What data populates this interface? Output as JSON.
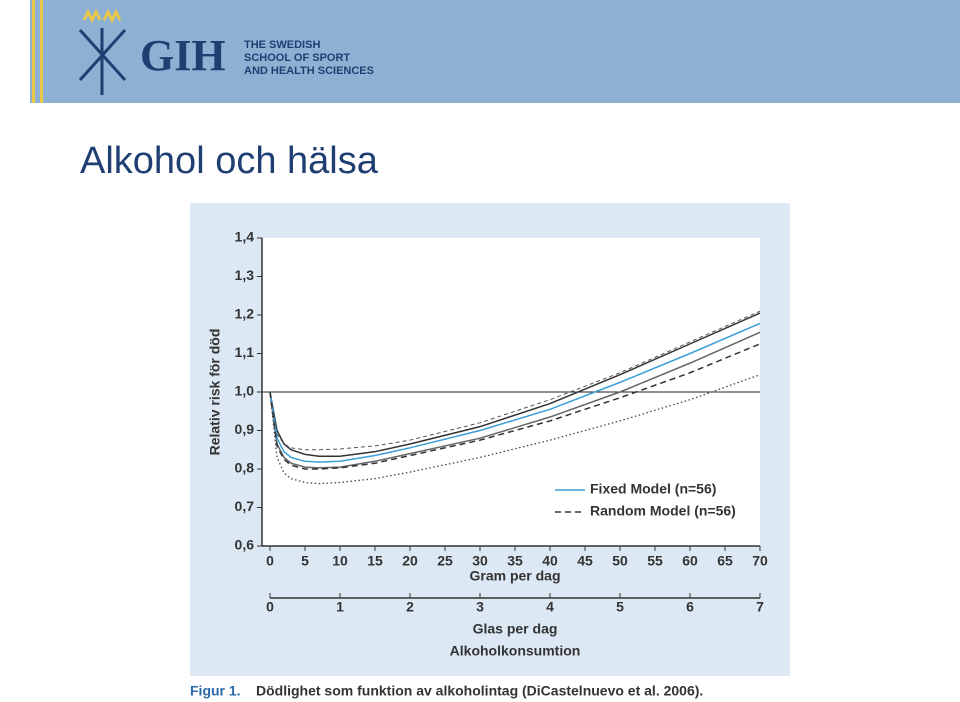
{
  "slide": {
    "logo": {
      "abbr": "GIH",
      "lines": [
        "THE SWEDISH",
        "SCHOOL OF SPORT",
        "AND HEALTH SCIENCES"
      ]
    },
    "title": "Alkohol och hälsa",
    "caption_label": "Figur 1.",
    "caption_text": "Dödlighet som funktion av alkoholintag (DiCastelnuevo et al. 2006)."
  },
  "chart_data": {
    "type": "line",
    "ylabel": "Relativ risk för död",
    "xlabel": "Gram per dag",
    "x2label": "Glas per dag",
    "footer_label": "Alkoholkonsumtion",
    "x": [
      0,
      1,
      2,
      3,
      5,
      7,
      10,
      15,
      20,
      30,
      40,
      50,
      60,
      70
    ],
    "series": [
      {
        "color": "#666666",
        "dash": "solid",
        "values": [
          1.0,
          0.865,
          0.83,
          0.815,
          0.805,
          0.803,
          0.805,
          0.82,
          0.84,
          0.88,
          0.935,
          1.0,
          1.075,
          1.155
        ]
      },
      {
        "color": "#333333",
        "dash": "solid",
        "values": [
          1.0,
          0.9,
          0.865,
          0.85,
          0.838,
          0.833,
          0.833,
          0.845,
          0.865,
          0.91,
          0.97,
          1.045,
          1.125,
          1.205
        ]
      },
      {
        "color": "#444444",
        "dash": "dotted",
        "values": [
          1.0,
          0.83,
          0.79,
          0.775,
          0.765,
          0.762,
          0.765,
          0.775,
          0.792,
          0.83,
          0.875,
          0.925,
          0.98,
          1.045
        ]
      },
      {
        "color": "#555555",
        "dash": "thin-dashed",
        "values": [
          1.0,
          0.89,
          0.865,
          0.855,
          0.85,
          0.85,
          0.852,
          0.86,
          0.875,
          0.92,
          0.98,
          1.05,
          1.13,
          1.21
        ]
      },
      {
        "name": "Fixed Model (n=56)",
        "color": "#3a9fd8",
        "dash": "solid",
        "values": [
          1.0,
          0.88,
          0.845,
          0.83,
          0.82,
          0.818,
          0.82,
          0.835,
          0.855,
          0.9,
          0.955,
          1.025,
          1.1,
          1.178
        ]
      },
      {
        "name": "Random Model (n=56)",
        "color": "#333333",
        "dash": "dashed",
        "values": [
          1.0,
          0.86,
          0.825,
          0.81,
          0.8,
          0.8,
          0.803,
          0.815,
          0.835,
          0.875,
          0.925,
          0.985,
          1.05,
          1.125
        ]
      }
    ],
    "reference_line": 1.0,
    "xlim": [
      0,
      70
    ],
    "xticks": [
      0,
      5,
      10,
      15,
      20,
      25,
      30,
      35,
      40,
      45,
      50,
      55,
      60,
      65,
      70
    ],
    "x2lim": [
      0,
      7
    ],
    "x2ticks": [
      0,
      1,
      2,
      3,
      4,
      5,
      6,
      7
    ],
    "ylim": [
      0.6,
      1.4
    ],
    "yticks": [
      {
        "value": 0.6,
        "label": "0,6"
      },
      {
        "value": 0.7,
        "label": "0,7"
      },
      {
        "value": 0.8,
        "label": "0,8"
      },
      {
        "value": 0.9,
        "label": "0,9"
      },
      {
        "value": 1.0,
        "label": "1,0"
      },
      {
        "value": 1.1,
        "label": "1,1"
      },
      {
        "value": 1.2,
        "label": "1,2"
      },
      {
        "value": 1.3,
        "label": "1,3"
      },
      {
        "value": 1.4,
        "label": "1,4"
      }
    ],
    "legend": "lower right"
  }
}
